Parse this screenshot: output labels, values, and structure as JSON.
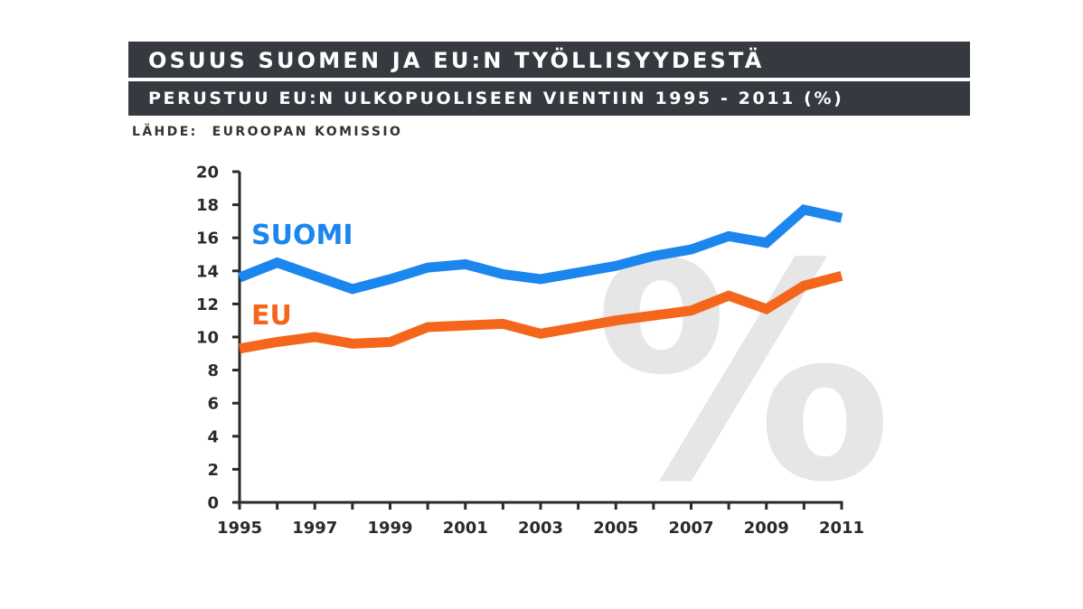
{
  "header": {
    "title": "OSUUS SUOMEN JA EU:N TYÖLLISYYDESTÄ",
    "subtitle": "PERUSTUU EU:N ULKOPUOLISEEN VIENTIIN 1995 - 2011 (%)",
    "source_label": "LÄHDE:",
    "source_value": "EUROOPAN KOMISSIO"
  },
  "watermark": "%",
  "chart_data": {
    "type": "line",
    "title": "OSUUS SUOMEN JA EU:N TYÖLLISYYDESTÄ",
    "subtitle": "PERUSTUU EU:N ULKOPUOLISEEN VIENTIIN 1995 - 2011 (%)",
    "xlabel": "",
    "ylabel": "",
    "x": [
      1995,
      1996,
      1997,
      1998,
      1999,
      2000,
      2001,
      2002,
      2003,
      2004,
      2005,
      2006,
      2007,
      2008,
      2009,
      2010,
      2011
    ],
    "xlim": [
      1995,
      2011
    ],
    "ylim": [
      0,
      20
    ],
    "x_tick_labels": [
      "1995",
      "1997",
      "1999",
      "2001",
      "2003",
      "2005",
      "2007",
      "2009",
      "2011"
    ],
    "y_tick_labels": [
      "0",
      "2",
      "4",
      "6",
      "8",
      "10",
      "12",
      "14",
      "16",
      "18",
      "20"
    ],
    "grid": false,
    "legend": "inline labels",
    "series": [
      {
        "name": "SUOMI",
        "color": "#1a86ee",
        "values": [
          13.6,
          14.5,
          13.7,
          12.9,
          13.5,
          14.2,
          14.4,
          13.8,
          13.5,
          13.9,
          14.3,
          14.9,
          15.3,
          16.1,
          15.7,
          17.7,
          17.2
        ]
      },
      {
        "name": "EU",
        "color": "#f4661b",
        "values": [
          9.3,
          9.7,
          10.0,
          9.6,
          9.7,
          10.6,
          10.7,
          10.8,
          10.2,
          10.6,
          11.0,
          11.3,
          11.6,
          12.5,
          11.7,
          13.1,
          13.7
        ]
      }
    ]
  }
}
